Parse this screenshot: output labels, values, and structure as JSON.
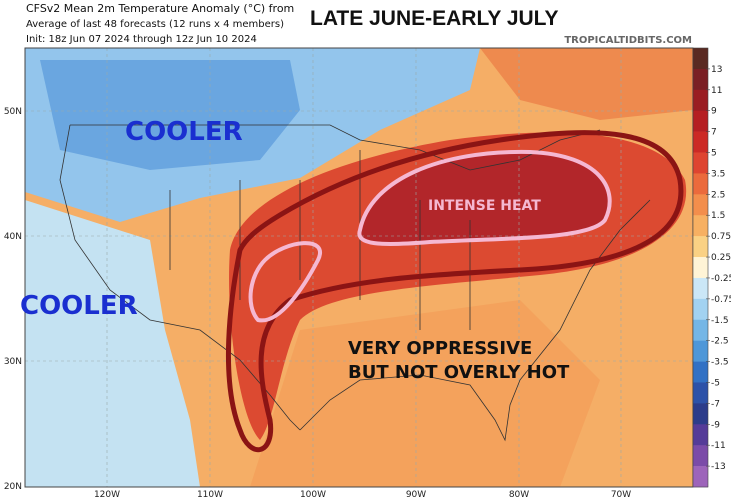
{
  "header": {
    "title": "CFSv2 Mean 2m Temperature Anomaly (°C) from",
    "subtitle": "Average of last 48 forecasts (12 runs x 4 members)",
    "init": "Init: 18z Jun 07 2024 through 12z Jun 10 2024",
    "headline": "LATE JUNE-EARLY JULY",
    "source": "TROPICALTIDBITS.COM"
  },
  "annotations": [
    "COOLER",
    "COOLER",
    "INTENSE HEAT",
    "VERY OPPRESSIVE",
    "BUT NOT OVERLY HOT"
  ],
  "latitudes": [
    "50N",
    "40N",
    "30N",
    "20N"
  ],
  "longitudes": [
    "120W",
    "110W",
    "100W",
    "90W",
    "80W",
    "70W"
  ],
  "colorbar": {
    "ticks": [
      13,
      11,
      9,
      7,
      5,
      3.5,
      2.5,
      1.5,
      0.75,
      0.25,
      -0.25,
      -0.75,
      -1.5,
      -2.5,
      -3.5,
      -5,
      -7,
      -9,
      -11,
      -13
    ],
    "colors": [
      "#5a2a22",
      "#7a1f24",
      "#9a1d22",
      "#b51f22",
      "#cc2a25",
      "#de4430",
      "#eb6a3c",
      "#f38e4c",
      "#f7b062",
      "#fad184",
      "#fff4d6",
      "#cbe7f7",
      "#a2d2f1",
      "#74b6e6",
      "#4e97d8",
      "#3271c4",
      "#2d52a8",
      "#2c3c8a",
      "#553b98",
      "#7b4ba8",
      "#9d64ba"
    ]
  }
}
